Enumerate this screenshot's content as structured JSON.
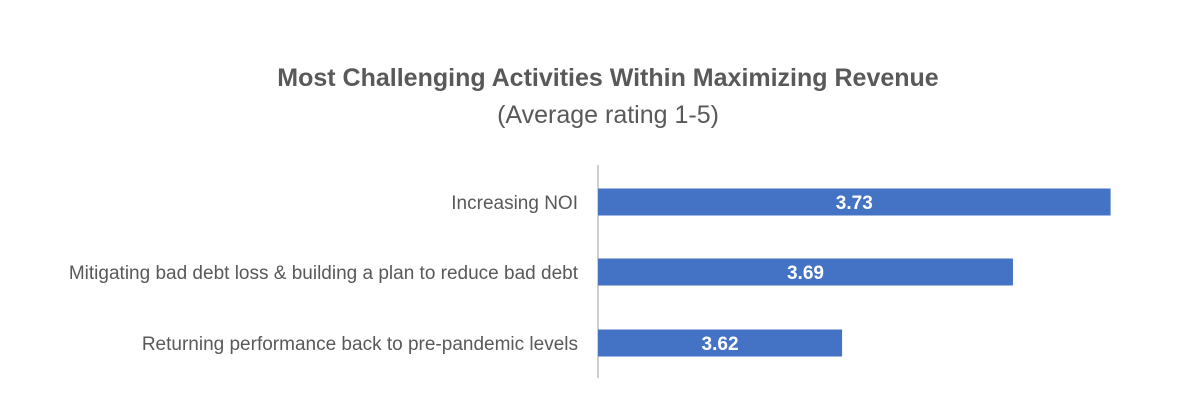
{
  "chart_data": {
    "type": "bar",
    "orientation": "horizontal",
    "title": "Most Challenging Activities Within Maximizing Revenue",
    "subtitle": "(Average rating 1-5)",
    "categories": [
      "Increasing NOI",
      "Mitigating bad debt loss & building a plan to reduce bad debt",
      "Returning performance back to pre-pandemic levels"
    ],
    "values": [
      3.73,
      3.69,
      3.62
    ],
    "data_labels": [
      "3.73",
      "3.69",
      "3.62"
    ],
    "xlim": [
      3.52,
      3.74
    ],
    "bar_color": "#4472C4",
    "axis_color": "#BFBFBF",
    "grid": false,
    "legend": "none"
  }
}
